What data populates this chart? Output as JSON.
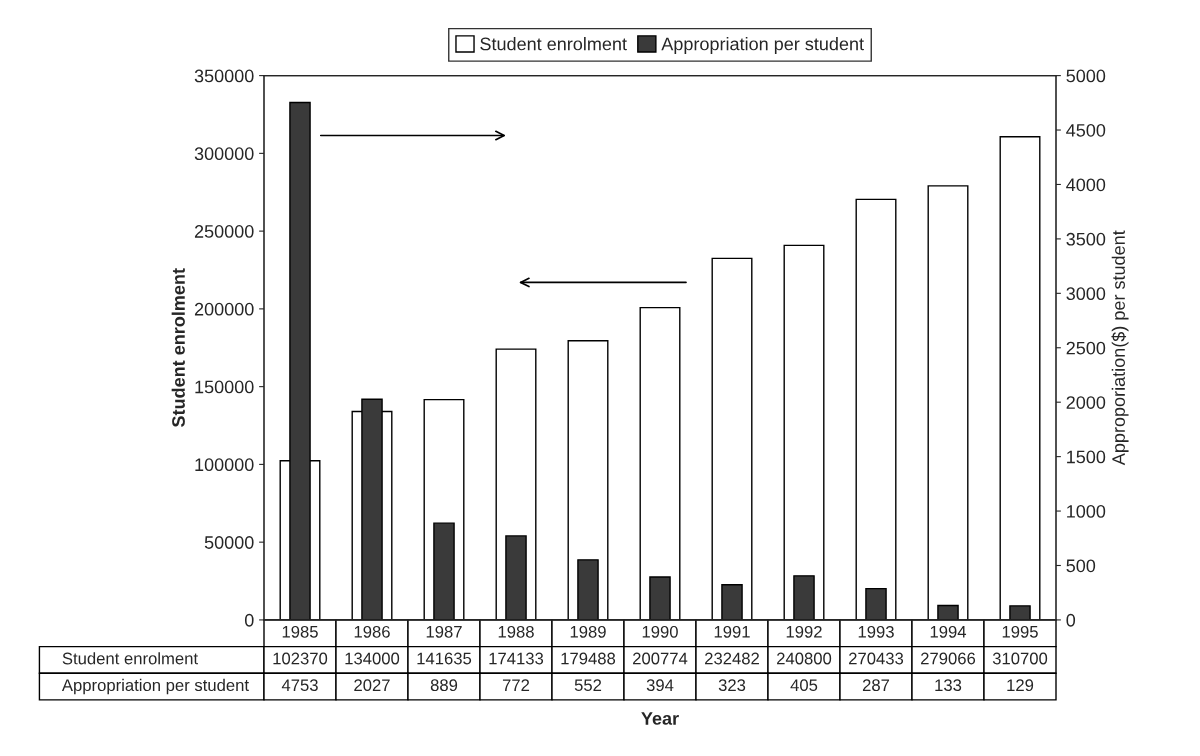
{
  "chart_data": {
    "type": "bar",
    "xlabel": "Year",
    "ylabel": "Student enrolment",
    "y2label": "Approporiation($) per student",
    "categories": [
      "1985",
      "1986",
      "1987",
      "1988",
      "1989",
      "1990",
      "1991",
      "1992",
      "1993",
      "1994",
      "1995"
    ],
    "series": [
      {
        "name": "Student enrolment",
        "color": "#ffffff",
        "values": [
          102370,
          134000,
          141635,
          174133,
          179488,
          200774,
          232482,
          240800,
          270433,
          279066,
          310700
        ]
      },
      {
        "name": "Appropriation per student",
        "color": "#3a3a3a",
        "axis": "y2",
        "values": [
          4753,
          2027,
          889,
          772,
          552,
          394,
          323,
          405,
          287,
          133,
          129
        ]
      }
    ],
    "ylim": [
      0,
      350000
    ],
    "yticks": [
      0,
      50000,
      100000,
      150000,
      200000,
      250000,
      300000,
      350000
    ],
    "y2lim": [
      0,
      5000
    ],
    "y2ticks": [
      0,
      500,
      1000,
      1500,
      2000,
      2500,
      3000,
      3500,
      4000,
      4500,
      5000
    ],
    "data_labels": true,
    "legend": "top",
    "grid": false
  }
}
